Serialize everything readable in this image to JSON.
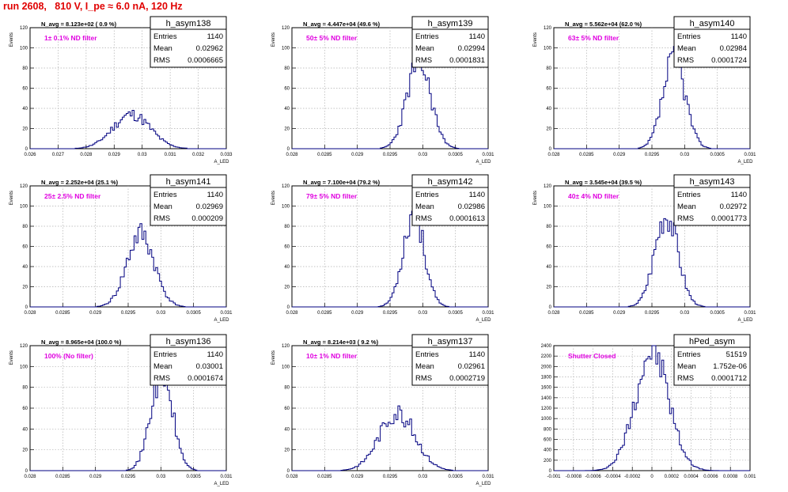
{
  "header": {
    "run_title": "run 2608,   810 V, I_pe ≈ 6.0 nA, 120 Hz"
  },
  "colors": {
    "histogram": "#000080",
    "annotation": "#e000e0",
    "title": "#e00000",
    "grid": "#b0b0b0"
  },
  "stats_labels": {
    "entries": "Entries",
    "mean": "Mean",
    "rms": "RMS"
  },
  "chart_data": [
    {
      "type": "bar",
      "name": "h_asym138",
      "nav": "N_avg = 8.123e+02 ( 0.9 %)",
      "filter": "1± 0.1% ND filter",
      "entries": "1140",
      "mean": "0.02962",
      "rms": "0.0006665",
      "ylabel": "Events",
      "xlabel": "A_LED",
      "xlim": [
        0.026,
        0.033
      ],
      "ylim": [
        0,
        120
      ],
      "xticks": [
        "0.026",
        "0.027",
        "0.028",
        "0.029",
        "0.03",
        "0.031",
        "0.032",
        "0.033"
      ],
      "yticks": [
        "0",
        "20",
        "40",
        "60",
        "80",
        "100",
        "120"
      ],
      "grid": true,
      "center": 0.02962,
      "sigma": 0.000666,
      "peak": 34,
      "seed": 11
    },
    {
      "type": "bar",
      "name": "h_asym139",
      "nav": "N_avg = 4.447e+04 (49.6 %)",
      "filter": "50± 5% ND filter",
      "entries": "1140",
      "mean": "0.02994",
      "rms": "0.0001831",
      "ylabel": "Events",
      "xlabel": "A_LED",
      "xlim": [
        0.028,
        0.031
      ],
      "ylim": [
        0,
        120
      ],
      "xticks": [
        "0.028",
        "0.0285",
        "0.029",
        "0.0295",
        "0.03",
        "0.0305",
        "0.031"
      ],
      "yticks": [
        "0",
        "20",
        "40",
        "60",
        "80",
        "100",
        "120"
      ],
      "grid": true,
      "center": 0.02994,
      "sigma": 0.000183,
      "peak": 86,
      "seed": 23
    },
    {
      "type": "bar",
      "name": "h_asym140",
      "nav": "N_avg = 5.562e+04 (62.0 %)",
      "filter": "63± 5% ND filter",
      "entries": "1140",
      "mean": "0.02984",
      "rms": "0.0001724",
      "ylabel": "Events",
      "xlabel": "A_LED",
      "xlim": [
        0.028,
        0.031
      ],
      "ylim": [
        0,
        120
      ],
      "xticks": [
        "0.028",
        "0.0285",
        "0.029",
        "0.0295",
        "0.03",
        "0.0305",
        "0.031"
      ],
      "yticks": [
        "0",
        "20",
        "40",
        "60",
        "80",
        "100",
        "120"
      ],
      "grid": true,
      "center": 0.02984,
      "sigma": 0.000172,
      "peak": 88,
      "seed": 37
    },
    {
      "type": "bar",
      "name": "h_asym141",
      "nav": "N_avg = 2.252e+04 (25.1 %)",
      "filter": "25± 2.5% ND filter",
      "entries": "1140",
      "mean": "0.02969",
      "rms": "0.000209",
      "ylabel": "Events",
      "xlabel": "A_LED",
      "xlim": [
        0.028,
        0.031
      ],
      "ylim": [
        0,
        120
      ],
      "xticks": [
        "0.028",
        "0.0285",
        "0.029",
        "0.0295",
        "0.03",
        "0.0305",
        "0.031"
      ],
      "yticks": [
        "0",
        "20",
        "40",
        "60",
        "80",
        "100",
        "120"
      ],
      "grid": true,
      "center": 0.02969,
      "sigma": 0.000209,
      "peak": 72,
      "seed": 41
    },
    {
      "type": "bar",
      "name": "h_asym142",
      "nav": "N_avg = 7.100e+04 (79.2 %)",
      "filter": "79± 5% ND filter",
      "entries": "1140",
      "mean": "0.02986",
      "rms": "0.0001613",
      "ylabel": "Events",
      "xlabel": "A_LED",
      "xlim": [
        0.028,
        0.031
      ],
      "ylim": [
        0,
        120
      ],
      "xticks": [
        "0.028",
        "0.0285",
        "0.029",
        "0.0295",
        "0.03",
        "0.0305",
        "0.031"
      ],
      "yticks": [
        "0",
        "20",
        "40",
        "60",
        "80",
        "100",
        "120"
      ],
      "grid": true,
      "center": 0.02986,
      "sigma": 0.000161,
      "peak": 93,
      "seed": 53
    },
    {
      "type": "bar",
      "name": "h_asym143",
      "nav": "N_avg = 3.545e+04 (39.5 %)",
      "filter": "40± 4% ND filter",
      "entries": "1140",
      "mean": "0.02972",
      "rms": "0.0001773",
      "ylabel": "Events",
      "xlabel": "A_LED",
      "xlim": [
        0.028,
        0.031
      ],
      "ylim": [
        0,
        120
      ],
      "xticks": [
        "0.028",
        "0.0285",
        "0.029",
        "0.0295",
        "0.03",
        "0.0305",
        "0.031"
      ],
      "yticks": [
        "0",
        "20",
        "40",
        "60",
        "80",
        "100",
        "120"
      ],
      "grid": true,
      "center": 0.02972,
      "sigma": 0.000177,
      "peak": 93,
      "seed": 67
    },
    {
      "type": "bar",
      "name": "h_asym136",
      "nav": "N_avg = 8.965e+04 (100.0 %)",
      "filter": "100% (No filter)",
      "entries": "1140",
      "mean": "0.03001",
      "rms": "0.0001674",
      "ylabel": "Events",
      "xlabel": "A_LED",
      "xlim": [
        0.028,
        0.031
      ],
      "ylim": [
        0,
        120
      ],
      "xticks": [
        "0.028",
        "0.0285",
        "0.029",
        "0.0295",
        "0.03",
        "0.0305",
        "0.031"
      ],
      "yticks": [
        "0",
        "20",
        "40",
        "60",
        "80",
        "100",
        "120"
      ],
      "grid": true,
      "center": 0.03001,
      "sigma": 0.000167,
      "peak": 93,
      "seed": 71
    },
    {
      "type": "bar",
      "name": "h_asym137",
      "nav": "N_avg = 8.214e+03 ( 9.2 %)",
      "filter": "10± 1% ND filter",
      "entries": "1140",
      "mean": "0.02961",
      "rms": "0.0002719",
      "ylabel": "Events",
      "xlabel": "A_LED",
      "xlim": [
        0.028,
        0.031
      ],
      "ylim": [
        0,
        120
      ],
      "xticks": [
        "0.028",
        "0.0285",
        "0.029",
        "0.0295",
        "0.03",
        "0.0305",
        "0.031"
      ],
      "yticks": [
        "0",
        "20",
        "40",
        "60",
        "80",
        "100",
        "120"
      ],
      "grid": true,
      "center": 0.02961,
      "sigma": 0.000272,
      "peak": 56,
      "seed": 83
    },
    {
      "type": "bar",
      "name": "hPed_asym",
      "nav": "",
      "filter": "Shutter Closed",
      "entries": "51519",
      "mean": "1.752e-06",
      "rms": "0.0001712",
      "ylabel": "",
      "xlabel": "",
      "xlim": [
        -0.001,
        0.001
      ],
      "ylim": [
        0,
        2400
      ],
      "xticks": [
        "-0.001",
        "-0.0008",
        "-0.0006",
        "-0.0004",
        "-0.0002",
        "0",
        "0.0002",
        "0.0004",
        "0.0006",
        "0.0008",
        "0.001"
      ],
      "yticks": [
        "0",
        "200",
        "400",
        "600",
        "800",
        "1000",
        "1200",
        "1400",
        "1600",
        "1800",
        "2000",
        "2200",
        "2400"
      ],
      "grid": true,
      "center": 0.0,
      "sigma": 0.000171,
      "peak": 2310,
      "seed": 97
    }
  ]
}
